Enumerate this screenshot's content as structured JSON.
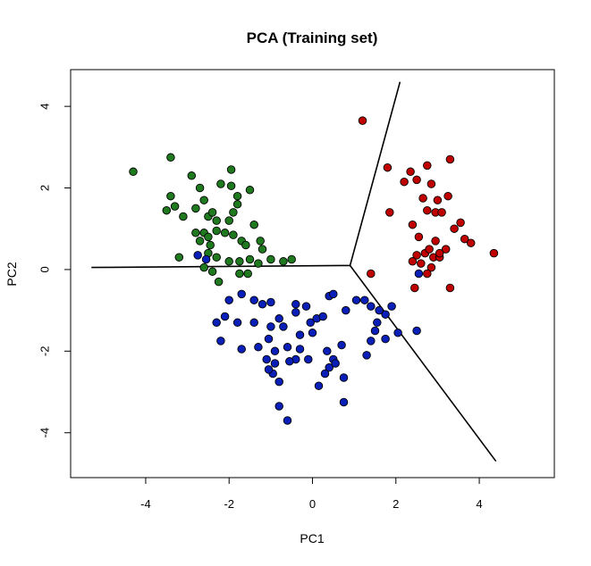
{
  "chart_data": {
    "type": "scatter",
    "title": "PCA (Training set)",
    "xlabel": "PC1",
    "ylabel": "PC2",
    "xlim": [
      -5.8,
      5.8
    ],
    "ylim": [
      -5.1,
      4.9
    ],
    "xticks": [
      -4,
      -2,
      0,
      2,
      4
    ],
    "yticks": [
      -4,
      -2,
      0,
      2,
      4
    ],
    "grid": false,
    "legend": "none",
    "colors": {
      "green": "#1f7a1f",
      "blue": "#0a1fb8",
      "red": "#c00000",
      "line": "#000000"
    },
    "series": [
      {
        "color": "green",
        "points": [
          [
            -4.3,
            2.4
          ],
          [
            -3.4,
            2.75
          ],
          [
            -3.4,
            1.8
          ],
          [
            -3.5,
            1.45
          ],
          [
            -3.3,
            1.55
          ],
          [
            -2.9,
            2.3
          ],
          [
            -2.7,
            2.0
          ],
          [
            -3.1,
            1.3
          ],
          [
            -2.8,
            1.5
          ],
          [
            -2.6,
            1.7
          ],
          [
            -2.5,
            1.3
          ],
          [
            -2.4,
            1.4
          ],
          [
            -2.3,
            1.2
          ],
          [
            -2.2,
            2.1
          ],
          [
            -1.95,
            2.45
          ],
          [
            -1.95,
            2.05
          ],
          [
            -1.8,
            1.8
          ],
          [
            -1.9,
            1.4
          ],
          [
            -1.8,
            1.6
          ],
          [
            -2.0,
            1.2
          ],
          [
            -2.1,
            0.9
          ],
          [
            -1.9,
            0.85
          ],
          [
            -2.6,
            0.9
          ],
          [
            -2.8,
            0.9
          ],
          [
            -2.5,
            0.8
          ],
          [
            -2.3,
            0.95
          ],
          [
            -2.7,
            0.7
          ],
          [
            -1.7,
            0.7
          ],
          [
            -1.6,
            0.6
          ],
          [
            -1.5,
            1.95
          ],
          [
            -1.4,
            1.1
          ],
          [
            -1.25,
            0.7
          ],
          [
            -1.5,
            0.25
          ],
          [
            -1.75,
            0.2
          ],
          [
            -2.0,
            0.2
          ],
          [
            -2.3,
            0.3
          ],
          [
            -2.4,
            -0.05
          ],
          [
            -2.5,
            0.4
          ],
          [
            -3.2,
            0.3
          ],
          [
            -2.45,
            0.6
          ],
          [
            -1.3,
            0.15
          ],
          [
            -1.0,
            0.25
          ],
          [
            -0.5,
            0.25
          ],
          [
            -0.7,
            0.2
          ],
          [
            -1.55,
            -0.1
          ],
          [
            -2.25,
            -0.3
          ],
          [
            -1.75,
            -0.1
          ],
          [
            -2.6,
            0.05
          ],
          [
            -1.2,
            0.5
          ]
        ]
      },
      {
        "color": "blue",
        "points": [
          [
            -2.75,
            0.35
          ],
          [
            -2.55,
            0.25
          ],
          [
            -1.2,
            -0.85
          ],
          [
            -1.0,
            -0.8
          ],
          [
            -1.7,
            -0.6
          ],
          [
            -1.4,
            -0.75
          ],
          [
            -0.4,
            -0.85
          ],
          [
            -0.15,
            -0.9
          ],
          [
            -2.0,
            -0.75
          ],
          [
            -2.1,
            -1.15
          ],
          [
            -1.8,
            -1.3
          ],
          [
            -1.4,
            -1.3
          ],
          [
            -2.3,
            -1.3
          ],
          [
            -2.2,
            -1.75
          ],
          [
            -1.7,
            -1.95
          ],
          [
            -1.0,
            -1.4
          ],
          [
            -0.8,
            -1.2
          ],
          [
            -0.7,
            -1.4
          ],
          [
            -1.05,
            -1.7
          ],
          [
            -0.9,
            -2.0
          ],
          [
            -0.6,
            -1.9
          ],
          [
            -0.3,
            -1.6
          ],
          [
            -0.05,
            -1.3
          ],
          [
            0.1,
            -1.2
          ],
          [
            0.25,
            -1.15
          ],
          [
            0.4,
            -0.65
          ],
          [
            0.5,
            -0.6
          ],
          [
            0.8,
            -1.0
          ],
          [
            1.05,
            -0.75
          ],
          [
            1.25,
            -0.75
          ],
          [
            1.4,
            -0.9
          ],
          [
            1.6,
            -1.0
          ],
          [
            1.55,
            -1.3
          ],
          [
            1.75,
            -1.1
          ],
          [
            1.9,
            -0.9
          ],
          [
            1.5,
            -1.5
          ],
          [
            1.75,
            -1.7
          ],
          [
            1.4,
            -1.75
          ],
          [
            1.3,
            -2.1
          ],
          [
            0.7,
            -1.85
          ],
          [
            0.5,
            -2.2
          ],
          [
            0.4,
            -2.4
          ],
          [
            0.55,
            -2.3
          ],
          [
            0.3,
            -2.55
          ],
          [
            0.75,
            -2.65
          ],
          [
            0.15,
            -2.85
          ],
          [
            -0.3,
            -1.95
          ],
          [
            -0.1,
            -2.2
          ],
          [
            -0.4,
            -2.2
          ],
          [
            -0.9,
            -2.3
          ],
          [
            -0.55,
            -2.25
          ],
          [
            -0.95,
            -2.55
          ],
          [
            -1.05,
            -2.45
          ],
          [
            -1.1,
            -2.2
          ],
          [
            -1.3,
            -1.9
          ],
          [
            -0.8,
            -2.75
          ],
          [
            -0.8,
            -3.35
          ],
          [
            -0.6,
            -3.7
          ],
          [
            0.75,
            -3.25
          ],
          [
            2.5,
            -1.5
          ],
          [
            2.05,
            -1.55
          ],
          [
            0.0,
            -1.55
          ],
          [
            -0.4,
            -1.05
          ],
          [
            0.35,
            -2.0
          ],
          [
            2.55,
            -0.1
          ]
        ]
      },
      {
        "color": "red",
        "points": [
          [
            1.2,
            3.65
          ],
          [
            1.8,
            2.5
          ],
          [
            2.35,
            2.4
          ],
          [
            2.2,
            2.15
          ],
          [
            2.5,
            2.2
          ],
          [
            2.75,
            2.55
          ],
          [
            3.3,
            2.7
          ],
          [
            2.85,
            2.1
          ],
          [
            2.65,
            1.75
          ],
          [
            3.0,
            1.7
          ],
          [
            3.25,
            1.8
          ],
          [
            3.55,
            1.15
          ],
          [
            3.4,
            1.0
          ],
          [
            2.95,
            1.4
          ],
          [
            2.75,
            1.45
          ],
          [
            3.1,
            1.4
          ],
          [
            1.85,
            1.4
          ],
          [
            2.4,
            1.1
          ],
          [
            2.55,
            0.8
          ],
          [
            2.95,
            0.7
          ],
          [
            3.2,
            0.5
          ],
          [
            3.65,
            0.75
          ],
          [
            3.8,
            0.65
          ],
          [
            4.35,
            0.4
          ],
          [
            2.5,
            0.35
          ],
          [
            2.7,
            0.4
          ],
          [
            2.9,
            0.3
          ],
          [
            2.4,
            0.2
          ],
          [
            2.6,
            0.15
          ],
          [
            3.05,
            0.3
          ],
          [
            2.8,
            0.5
          ],
          [
            2.85,
            0.05
          ],
          [
            2.75,
            -0.1
          ],
          [
            3.3,
            -0.45
          ],
          [
            2.45,
            -0.45
          ],
          [
            1.4,
            -0.1
          ],
          [
            3.05,
            0.4
          ]
        ]
      }
    ],
    "lines": [
      {
        "points": [
          [
            0.9,
            0.1
          ],
          [
            -5.3,
            0.05
          ]
        ]
      },
      {
        "points": [
          [
            0.9,
            0.1
          ],
          [
            2.1,
            4.6
          ]
        ]
      },
      {
        "points": [
          [
            0.9,
            0.1
          ],
          [
            4.4,
            -4.7
          ]
        ]
      }
    ]
  }
}
